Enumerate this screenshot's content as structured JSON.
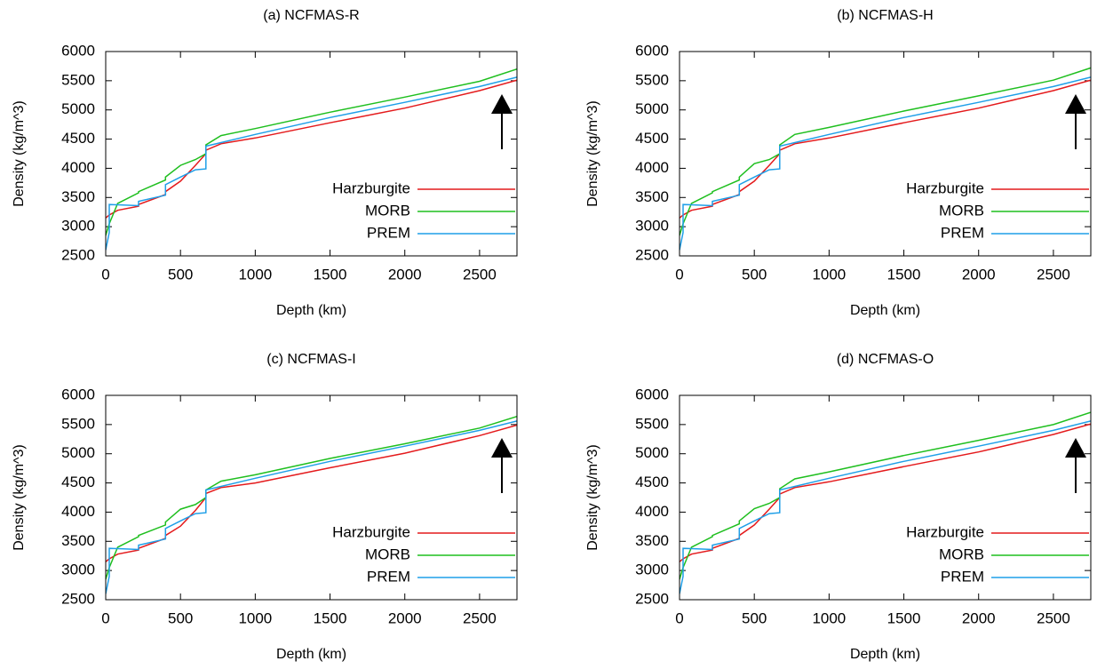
{
  "chart_data": [
    {
      "type": "line",
      "title": "(a) NCFMAS-R",
      "x_label": "Depth (km)",
      "y_label": "Density (kg/m^3)",
      "x": [
        0,
        24,
        24,
        80,
        220,
        220,
        400,
        400,
        500,
        600,
        670,
        670,
        771,
        1000,
        1500,
        2000,
        2500,
        2750
      ],
      "series": [
        {
          "name": "Harzburgite",
          "color": "#e41a1c",
          "values": [
            3150,
            3200,
            3200,
            3280,
            3350,
            3380,
            3550,
            3600,
            3780,
            4050,
            4250,
            4310,
            4420,
            4520,
            4780,
            5030,
            5330,
            5510
          ]
        },
        {
          "name": "MORB",
          "color": "#1fbf1f",
          "values": [
            2850,
            3050,
            3050,
            3400,
            3580,
            3600,
            3800,
            3850,
            4050,
            4150,
            4250,
            4400,
            4560,
            4680,
            4960,
            5220,
            5490,
            5700
          ]
        },
        {
          "name": "PREM",
          "color": "#1f9fe8",
          "values": [
            2600,
            2900,
            3380,
            3375,
            3360,
            3435,
            3540,
            3720,
            3850,
            3975,
            3990,
            4380,
            4440,
            4580,
            4870,
            5130,
            5400,
            5560
          ]
        }
      ],
      "xlim": [
        0,
        2750
      ],
      "ylim": [
        2500,
        6000
      ],
      "xticks": [
        0,
        500,
        1000,
        1500,
        2000,
        2500
      ],
      "yticks": [
        2500,
        3000,
        3500,
        4000,
        4500,
        5000,
        5500,
        6000
      ]
    },
    {
      "type": "line",
      "title": "(b) NCFMAS-H",
      "x_label": "Depth (km)",
      "y_label": "Density (kg/m^3)",
      "x": [
        0,
        24,
        24,
        80,
        220,
        220,
        400,
        400,
        500,
        600,
        670,
        670,
        771,
        1000,
        1500,
        2000,
        2500,
        2750
      ],
      "series": [
        {
          "name": "Harzburgite",
          "color": "#e41a1c",
          "values": [
            3150,
            3200,
            3200,
            3280,
            3350,
            3380,
            3550,
            3600,
            3780,
            4050,
            4250,
            4310,
            4420,
            4520,
            4780,
            5030,
            5330,
            5510
          ]
        },
        {
          "name": "MORB",
          "color": "#1fbf1f",
          "values": [
            2850,
            3050,
            3050,
            3400,
            3580,
            3600,
            3800,
            3850,
            4080,
            4150,
            4250,
            4400,
            4580,
            4700,
            4980,
            5240,
            5510,
            5720
          ]
        },
        {
          "name": "PREM",
          "color": "#1f9fe8",
          "values": [
            2600,
            2900,
            3380,
            3375,
            3360,
            3435,
            3540,
            3720,
            3850,
            3975,
            3990,
            4380,
            4440,
            4580,
            4870,
            5130,
            5400,
            5560
          ]
        }
      ],
      "xlim": [
        0,
        2750
      ],
      "ylim": [
        2500,
        6000
      ],
      "xticks": [
        0,
        500,
        1000,
        1500,
        2000,
        2500
      ],
      "yticks": [
        2500,
        3000,
        3500,
        4000,
        4500,
        5000,
        5500,
        6000
      ]
    },
    {
      "type": "line",
      "title": "(c) NCFMAS-I",
      "x_label": "Depth (km)",
      "y_label": "Density (kg/m^3)",
      "x": [
        0,
        24,
        24,
        80,
        220,
        220,
        400,
        400,
        500,
        600,
        670,
        670,
        771,
        1000,
        1500,
        2000,
        2500,
        2750
      ],
      "series": [
        {
          "name": "Harzburgite",
          "color": "#e41a1c",
          "values": [
            3150,
            3200,
            3200,
            3280,
            3350,
            3380,
            3550,
            3600,
            3760,
            4030,
            4250,
            4320,
            4420,
            4500,
            4760,
            5010,
            5310,
            5490
          ]
        },
        {
          "name": "MORB",
          "color": "#1fbf1f",
          "values": [
            2850,
            3050,
            3050,
            3400,
            3580,
            3600,
            3780,
            3830,
            4050,
            4130,
            4250,
            4380,
            4530,
            4640,
            4920,
            5170,
            5440,
            5640
          ]
        },
        {
          "name": "PREM",
          "color": "#1f9fe8",
          "values": [
            2600,
            2900,
            3380,
            3375,
            3360,
            3435,
            3540,
            3720,
            3850,
            3975,
            3990,
            4380,
            4440,
            4580,
            4870,
            5130,
            5400,
            5560
          ]
        }
      ],
      "xlim": [
        0,
        2750
      ],
      "ylim": [
        2500,
        6000
      ],
      "xticks": [
        0,
        500,
        1000,
        1500,
        2000,
        2500
      ],
      "yticks": [
        2500,
        3000,
        3500,
        4000,
        4500,
        5000,
        5500,
        6000
      ]
    },
    {
      "type": "line",
      "title": "(d) NCFMAS-O",
      "x_label": "Depth (km)",
      "y_label": "Density (kg/m^3)",
      "x": [
        0,
        24,
        24,
        80,
        220,
        220,
        400,
        400,
        500,
        600,
        670,
        670,
        771,
        1000,
        1500,
        2000,
        2500,
        2750
      ],
      "series": [
        {
          "name": "Harzburgite",
          "color": "#e41a1c",
          "values": [
            3150,
            3200,
            3200,
            3280,
            3350,
            3380,
            3550,
            3600,
            3780,
            4050,
            4250,
            4310,
            4420,
            4520,
            4780,
            5030,
            5330,
            5510
          ]
        },
        {
          "name": "MORB",
          "color": "#1fbf1f",
          "values": [
            2850,
            3050,
            3050,
            3400,
            3580,
            3600,
            3800,
            3850,
            4060,
            4150,
            4250,
            4400,
            4570,
            4690,
            4970,
            5230,
            5500,
            5710
          ]
        },
        {
          "name": "PREM",
          "color": "#1f9fe8",
          "values": [
            2600,
            2900,
            3380,
            3375,
            3360,
            3435,
            3540,
            3720,
            3850,
            3975,
            3990,
            4380,
            4440,
            4580,
            4870,
            5130,
            5400,
            5560
          ]
        }
      ],
      "xlim": [
        0,
        2750
      ],
      "ylim": [
        2500,
        6000
      ],
      "xticks": [
        0,
        500,
        1000,
        1500,
        2000,
        2500
      ],
      "yticks": [
        2500,
        3000,
        3500,
        4000,
        4500,
        5000,
        5500,
        6000
      ]
    }
  ]
}
